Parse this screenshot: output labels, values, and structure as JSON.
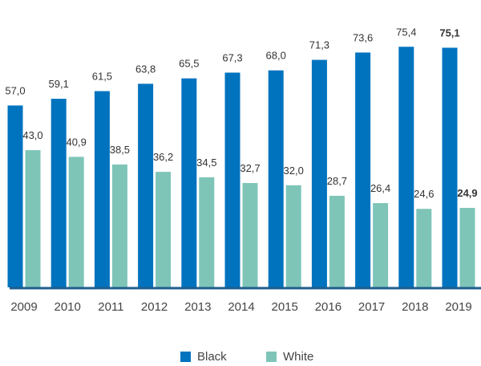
{
  "colors": {
    "black": "#0073bf",
    "white": "#7ec5b8",
    "axis": "#1f5e8c"
  },
  "chart_data": {
    "type": "bar",
    "categories": [
      "2009",
      "2010",
      "2011",
      "2012",
      "2013",
      "2014",
      "2015",
      "2016",
      "2017",
      "2018",
      "2019"
    ],
    "series": [
      {
        "name": "Black",
        "values": [
          57.0,
          59.1,
          61.5,
          63.8,
          65.5,
          67.3,
          68.0,
          71.3,
          73.6,
          75.4,
          75.1
        ],
        "labels": [
          "57,0",
          "59,1",
          "61,5",
          "63,8",
          "65,5",
          "67,3",
          "68,0",
          "71,3",
          "73,6",
          "75,4",
          "75,1"
        ]
      },
      {
        "name": "White",
        "values": [
          43.0,
          40.9,
          38.5,
          36.2,
          34.5,
          32.7,
          32.0,
          28.7,
          26.4,
          24.6,
          24.9
        ],
        "labels": [
          "43,0",
          "40,9",
          "38,5",
          "36,2",
          "34,5",
          "32,7",
          "32,0",
          "28,7",
          "26,4",
          "24,6",
          "24,9"
        ]
      }
    ],
    "highlight_category": "2019",
    "ylim": [
      0,
      80
    ],
    "grid": false,
    "legend_position": "bottom"
  }
}
